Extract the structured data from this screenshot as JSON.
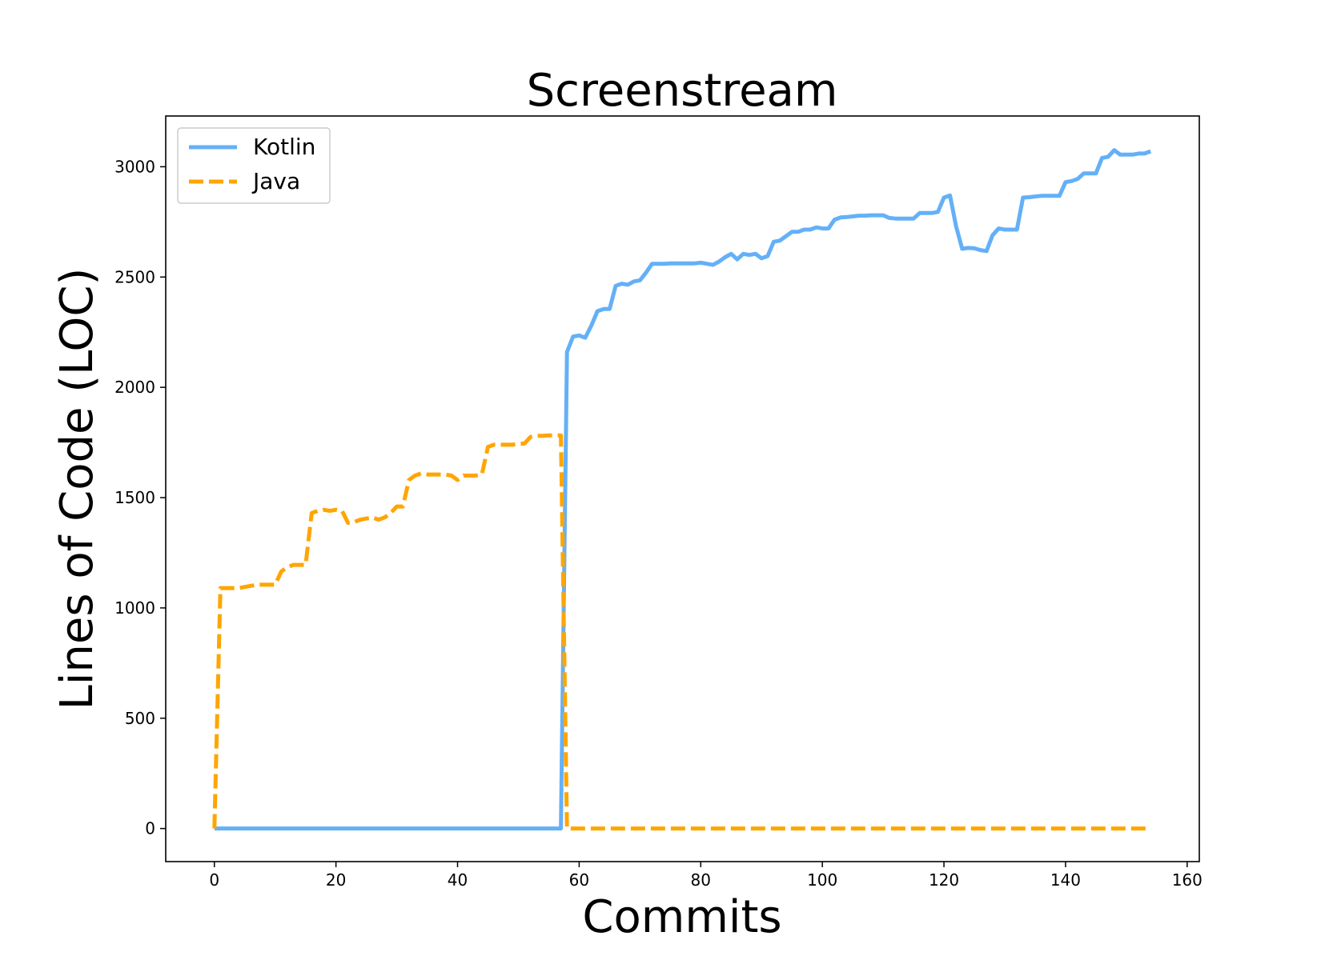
{
  "chart_data": {
    "type": "line",
    "title": "Screenstream",
    "xlabel": "Commits",
    "ylabel": "Lines of Code (LOC)",
    "xlim": [
      -8,
      162
    ],
    "ylim": [
      -150,
      3230
    ],
    "xticks": [
      0,
      20,
      40,
      60,
      80,
      100,
      120,
      140,
      160
    ],
    "yticks": [
      0,
      500,
      1000,
      1500,
      2000,
      2500,
      3000
    ],
    "grid": false,
    "legend_position": "top-left",
    "series": [
      {
        "name": "Kotlin",
        "color": "#64b0f8",
        "style": "solid",
        "points": [
          [
            0,
            0
          ],
          [
            57,
            0
          ],
          [
            58,
            2160
          ],
          [
            59,
            2230
          ],
          [
            60,
            2235
          ],
          [
            61,
            2225
          ],
          [
            62,
            2280
          ],
          [
            63,
            2345
          ],
          [
            64,
            2355
          ],
          [
            65,
            2355
          ],
          [
            66,
            2460
          ],
          [
            67,
            2470
          ],
          [
            68,
            2465
          ],
          [
            69,
            2480
          ],
          [
            70,
            2485
          ],
          [
            71,
            2520
          ],
          [
            72,
            2560
          ],
          [
            73,
            2560
          ],
          [
            74,
            2560
          ],
          [
            75,
            2562
          ],
          [
            76,
            2562
          ],
          [
            77,
            2562
          ],
          [
            78,
            2562
          ],
          [
            79,
            2562
          ],
          [
            80,
            2565
          ],
          [
            81,
            2560
          ],
          [
            82,
            2555
          ],
          [
            83,
            2570
          ],
          [
            84,
            2590
          ],
          [
            85,
            2605
          ],
          [
            86,
            2580
          ],
          [
            87,
            2605
          ],
          [
            88,
            2600
          ],
          [
            89,
            2605
          ],
          [
            90,
            2585
          ],
          [
            91,
            2595
          ],
          [
            92,
            2660
          ],
          [
            93,
            2665
          ],
          [
            94,
            2685
          ],
          [
            95,
            2705
          ],
          [
            96,
            2705
          ],
          [
            97,
            2715
          ],
          [
            98,
            2715
          ],
          [
            99,
            2725
          ],
          [
            100,
            2720
          ],
          [
            101,
            2720
          ],
          [
            102,
            2760
          ],
          [
            103,
            2770
          ],
          [
            104,
            2772
          ],
          [
            105,
            2775
          ],
          [
            106,
            2778
          ],
          [
            107,
            2778
          ],
          [
            108,
            2780
          ],
          [
            109,
            2780
          ],
          [
            110,
            2780
          ],
          [
            111,
            2768
          ],
          [
            112,
            2765
          ],
          [
            113,
            2765
          ],
          [
            114,
            2765
          ],
          [
            115,
            2765
          ],
          [
            116,
            2790
          ],
          [
            117,
            2790
          ],
          [
            118,
            2790
          ],
          [
            119,
            2795
          ],
          [
            120,
            2860
          ],
          [
            121,
            2870
          ],
          [
            122,
            2730
          ],
          [
            123,
            2628
          ],
          [
            124,
            2632
          ],
          [
            125,
            2630
          ],
          [
            126,
            2622
          ],
          [
            127,
            2618
          ],
          [
            128,
            2690
          ],
          [
            129,
            2720
          ],
          [
            130,
            2715
          ],
          [
            131,
            2715
          ],
          [
            132,
            2715
          ],
          [
            133,
            2860
          ],
          [
            134,
            2862
          ],
          [
            135,
            2865
          ],
          [
            136,
            2868
          ],
          [
            137,
            2868
          ],
          [
            138,
            2868
          ],
          [
            139,
            2868
          ],
          [
            140,
            2930
          ],
          [
            141,
            2935
          ],
          [
            142,
            2945
          ],
          [
            143,
            2970
          ],
          [
            144,
            2970
          ],
          [
            145,
            2970
          ],
          [
            146,
            3040
          ],
          [
            147,
            3045
          ],
          [
            148,
            3075
          ],
          [
            149,
            3055
          ],
          [
            150,
            3055
          ],
          [
            151,
            3055
          ],
          [
            152,
            3060
          ],
          [
            153,
            3060
          ],
          [
            154,
            3070
          ]
        ]
      },
      {
        "name": "Java",
        "color": "#ffa500",
        "style": "dashed",
        "points": [
          [
            0,
            0
          ],
          [
            1,
            1090
          ],
          [
            2,
            1090
          ],
          [
            3,
            1090
          ],
          [
            4,
            1090
          ],
          [
            5,
            1095
          ],
          [
            6,
            1100
          ],
          [
            7,
            1105
          ],
          [
            8,
            1105
          ],
          [
            9,
            1105
          ],
          [
            10,
            1105
          ],
          [
            11,
            1165
          ],
          [
            12,
            1185
          ],
          [
            13,
            1195
          ],
          [
            14,
            1195
          ],
          [
            15,
            1195
          ],
          [
            16,
            1430
          ],
          [
            17,
            1440
          ],
          [
            18,
            1445
          ],
          [
            19,
            1440
          ],
          [
            20,
            1445
          ],
          [
            21,
            1440
          ],
          [
            22,
            1385
          ],
          [
            23,
            1390
          ],
          [
            24,
            1400
          ],
          [
            25,
            1405
          ],
          [
            26,
            1410
          ],
          [
            27,
            1400
          ],
          [
            28,
            1410
          ],
          [
            29,
            1430
          ],
          [
            30,
            1460
          ],
          [
            31,
            1460
          ],
          [
            32,
            1580
          ],
          [
            33,
            1600
          ],
          [
            34,
            1610
          ],
          [
            35,
            1605
          ],
          [
            36,
            1605
          ],
          [
            37,
            1605
          ],
          [
            38,
            1605
          ],
          [
            39,
            1600
          ],
          [
            40,
            1580
          ],
          [
            41,
            1600
          ],
          [
            42,
            1600
          ],
          [
            43,
            1600
          ],
          [
            44,
            1605
          ],
          [
            45,
            1730
          ],
          [
            46,
            1740
          ],
          [
            47,
            1740
          ],
          [
            48,
            1740
          ],
          [
            49,
            1740
          ],
          [
            50,
            1745
          ],
          [
            51,
            1745
          ],
          [
            52,
            1775
          ],
          [
            53,
            1780
          ],
          [
            54,
            1780
          ],
          [
            55,
            1782
          ],
          [
            56,
            1782
          ],
          [
            57,
            1782
          ],
          [
            58,
            0
          ],
          [
            154,
            0
          ]
        ]
      }
    ]
  }
}
